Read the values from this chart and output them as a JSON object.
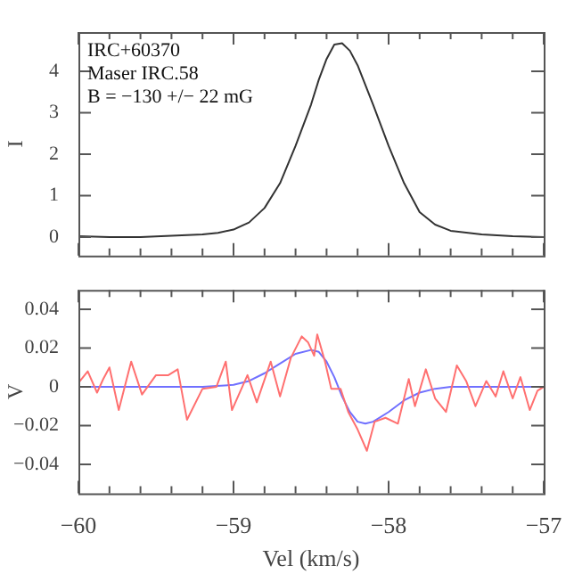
{
  "chart_data": [
    {
      "type": "line",
      "ylabel": "I",
      "annotations": [
        "IRC+60370",
        "Maser IRC.58",
        "B = −130 +/− 22 mG"
      ],
      "xlim": [
        -60,
        -57
      ],
      "ylim": [
        -0.45,
        4.95
      ],
      "tick_labels": "y",
      "grid": false,
      "legend": false,
      "marker": "none",
      "xticks": [
        {
          "value": -60,
          "label": null
        },
        {
          "value": -59.8,
          "label": null
        },
        {
          "value": -59.6,
          "label": null
        },
        {
          "value": -59.4,
          "label": null
        },
        {
          "value": -59.2,
          "label": null
        },
        {
          "value": -59,
          "label": null
        },
        {
          "value": -58.8,
          "label": null
        },
        {
          "value": -58.6,
          "label": null
        },
        {
          "value": -58.4,
          "label": null
        },
        {
          "value": -58.2,
          "label": null
        },
        {
          "value": -58,
          "label": null
        },
        {
          "value": -57.8,
          "label": null
        },
        {
          "value": -57.6,
          "label": null
        },
        {
          "value": -57.4,
          "label": null
        },
        {
          "value": -57.2,
          "label": null
        },
        {
          "value": -57,
          "label": null
        }
      ],
      "yticks": [
        0,
        1,
        2,
        3,
        4
      ],
      "series": [
        {
          "color": "#333333",
          "x": [
            -60,
            -59.8,
            -59.6,
            -59.4,
            -59.2,
            -59.1,
            -59.0,
            -58.9,
            -58.8,
            -58.7,
            -58.6,
            -58.5,
            -58.45,
            -58.4,
            -58.35,
            -58.3,
            -58.25,
            -58.2,
            -58.1,
            -58.0,
            -57.9,
            -57.8,
            -57.7,
            -57.6,
            -57.4,
            -57.2,
            -57.0
          ],
          "values": [
            0.02,
            0.0,
            0.0,
            0.03,
            0.06,
            0.1,
            0.18,
            0.35,
            0.7,
            1.3,
            2.2,
            3.2,
            3.8,
            4.3,
            4.65,
            4.68,
            4.5,
            4.15,
            3.2,
            2.2,
            1.3,
            0.6,
            0.3,
            0.15,
            0.06,
            0.02,
            0.0
          ]
        }
      ]
    },
    {
      "type": "line",
      "ylabel": "V",
      "xlabel": "Vel (km/s)",
      "xlim": [
        -60,
        -57
      ],
      "ylim": [
        -0.055,
        0.05
      ],
      "grid": false,
      "legend": false,
      "marker": "none",
      "xticks": [
        {
          "value": -60,
          "label": "−60"
        },
        {
          "value": -59.8,
          "label": null
        },
        {
          "value": -59.6,
          "label": null
        },
        {
          "value": -59.4,
          "label": null
        },
        {
          "value": -59.2,
          "label": null
        },
        {
          "value": -59,
          "label": "−59"
        },
        {
          "value": -58.8,
          "label": null
        },
        {
          "value": -58.6,
          "label": null
        },
        {
          "value": -58.4,
          "label": null
        },
        {
          "value": -58.2,
          "label": null
        },
        {
          "value": -58,
          "label": "−58"
        },
        {
          "value": -57.8,
          "label": null
        },
        {
          "value": -57.6,
          "label": null
        },
        {
          "value": -57.4,
          "label": null
        },
        {
          "value": -57.2,
          "label": null
        },
        {
          "value": -57,
          "label": "−57"
        }
      ],
      "yticks": [
        {
          "value": -0.04,
          "label": "−0.04"
        },
        {
          "value": -0.02,
          "label": "−0.02"
        },
        0,
        0.02,
        0.04
      ],
      "series": [
        {
          "color": "#ff7070",
          "x": [
            -60,
            -59.94,
            -59.88,
            -59.84,
            -59.8,
            -59.74,
            -59.66,
            -59.59,
            -59.5,
            -59.42,
            -59.36,
            -59.3,
            -59.2,
            -59.11,
            -59.05,
            -59.01,
            -58.91,
            -58.85,
            -58.76,
            -58.7,
            -58.63,
            -58.56,
            -58.52,
            -58.48,
            -58.46,
            -58.41,
            -58.37,
            -58.31,
            -58.26,
            -58.2,
            -58.14,
            -58.09,
            -58.02,
            -57.94,
            -57.87,
            -57.83,
            -57.76,
            -57.7,
            -57.63,
            -57.56,
            -57.5,
            -57.44,
            -57.37,
            -57.31,
            -57.26,
            -57.2,
            -57.15,
            -57.09,
            -57.04,
            -57.0
          ],
          "values": [
            0.002,
            0.008,
            -0.003,
            0.004,
            0.01,
            -0.012,
            0.013,
            -0.004,
            0.006,
            0.006,
            0.009,
            -0.017,
            -0.001,
            0,
            0.013,
            -0.012,
            0.006,
            -0.008,
            0.013,
            -0.005,
            0.015,
            0.026,
            0.023,
            0.016,
            0.027,
            0.013,
            -0.001,
            -0.001,
            -0.013,
            -0.022,
            -0.033,
            -0.018,
            -0.016,
            -0.019,
            0.004,
            -0.01,
            0.009,
            -0.006,
            -0.013,
            0.011,
            0.003,
            -0.01,
            0.003,
            -0.005,
            0.008,
            -0.006,
            0.005,
            -0.012,
            -0.002,
            0
          ]
        },
        {
          "color": "#7070ff",
          "x": [
            -60,
            -59.2,
            -59.0,
            -58.9,
            -58.8,
            -58.7,
            -58.6,
            -58.5,
            -58.45,
            -58.4,
            -58.35,
            -58.3,
            -58.25,
            -58.2,
            -58.15,
            -58.1,
            -58.0,
            -57.9,
            -57.8,
            -57.7,
            -57.6,
            -57.0
          ],
          "values": [
            0,
            0,
            0.001,
            0.003,
            0.007,
            0.012,
            0.017,
            0.019,
            0.018,
            0.013,
            0.005,
            -0.005,
            -0.013,
            -0.018,
            -0.019,
            -0.018,
            -0.013,
            -0.007,
            -0.003,
            -0.001,
            0,
            0
          ]
        }
      ]
    }
  ]
}
